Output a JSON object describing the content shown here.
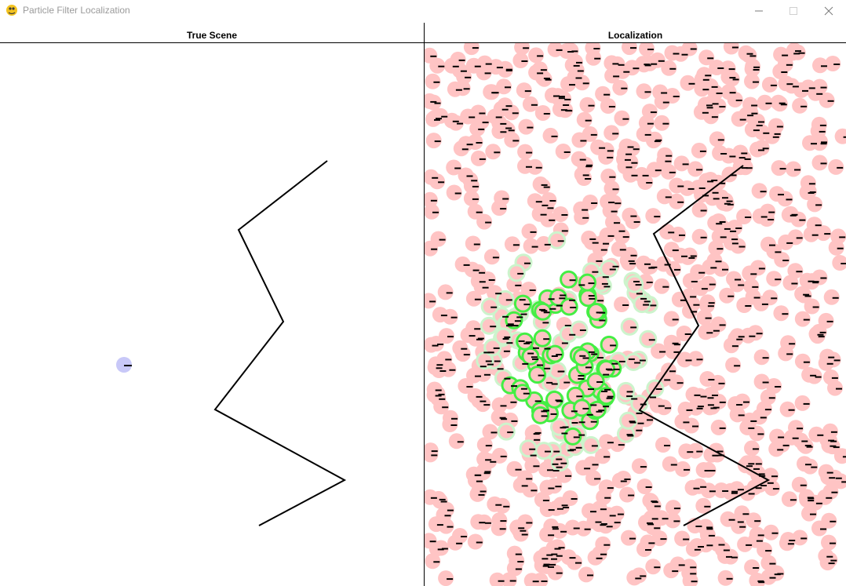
{
  "window": {
    "title": "Particle Filter Localization",
    "icon": "python-icon"
  },
  "controls": {
    "minimize_icon": "minimize-icon",
    "maximize_icon": "maximize-icon",
    "close_icon": "close-icon"
  },
  "left_panel": {
    "title": "True Scene",
    "robot_color": "#c8c8f8",
    "wall_color": "#000000"
  },
  "right_panel": {
    "title": "Localization",
    "particle_color": "#ffc4c4",
    "best_particle_color": "#44ee44",
    "good_particle_color": "#ccf4cc",
    "wall_color": "#000000"
  }
}
